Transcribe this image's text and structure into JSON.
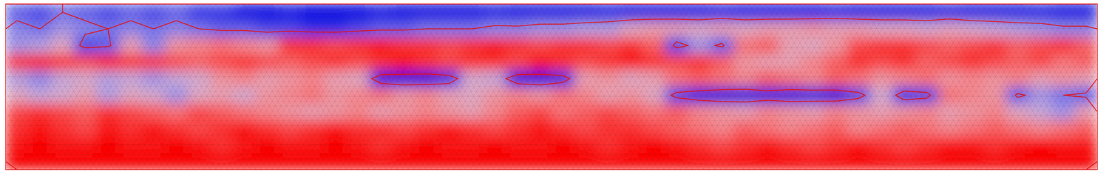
{
  "chart_data": {
    "type": "heatmap",
    "cells": [
      [
        -0.6,
        -0.7,
        -0.5,
        -0.6,
        -0.7,
        -0.6,
        -0.7,
        -0.6,
        -0.8,
        -0.8,
        -1,
        -1,
        -0.9,
        -1,
        -1,
        -1,
        -0.9,
        -1,
        -1,
        -1,
        -1,
        -0.9,
        -1,
        -1,
        -1,
        -1,
        -0.9,
        -1,
        -1,
        -1,
        -1,
        -0.9,
        -1,
        -1,
        -1,
        -1,
        -0.9,
        -1,
        -1,
        -1,
        -1,
        -0.9,
        -1,
        -1,
        -1,
        -0.9,
        -1,
        -1
      ],
      [
        -0.4,
        -0.5,
        -0.3,
        -0.4,
        -0.5,
        -0.4,
        -0.5,
        -0.4,
        -0.5,
        -0.6,
        -0.6,
        -0.7,
        -0.7,
        -0.8,
        -0.8,
        -0.7,
        -0.6,
        -0.6,
        -0.5,
        -0.5,
        -0.5,
        -0.4,
        -0.4,
        -0.3,
        -0.3,
        -0.2,
        -0.2,
        0.1,
        0.2,
        0.2,
        0.1,
        0.2,
        0.1,
        0.2,
        0.2,
        0.3,
        0.2,
        0.2,
        0.1,
        0.1,
        0.0,
        0.1,
        0.0,
        -0.1,
        -0.2,
        -0.3,
        -0.4,
        -0.4
      ],
      [
        -0.3,
        -0.2,
        0.1,
        -0.7,
        -0.6,
        0.2,
        -0.4,
        0.3,
        0.4,
        0.5,
        0.4,
        0.3,
        0.8,
        0.8,
        0.7,
        0.8,
        0.9,
        0.8,
        0.8,
        0.7,
        0.8,
        0.9,
        0.8,
        0.7,
        0.8,
        0.8,
        0.7,
        0.8,
        0.6,
        -0.7,
        -0.3,
        -0.6,
        0.5,
        0.6,
        0.2,
        0.1,
        0.3,
        0.7,
        0.8,
        0.8,
        0.7,
        0.6,
        0.7,
        0.8,
        0.6,
        0.7,
        0.8,
        0.6
      ],
      [
        0.8,
        0.9,
        0.8,
        0.7,
        0.9,
        0.8,
        0.8,
        0.7,
        0.6,
        0.7,
        0.8,
        0.7,
        0.6,
        0.7,
        0.8,
        0.7,
        0.8,
        0.9,
        0.8,
        0.7,
        0.8,
        0.8,
        0.7,
        0.9,
        0.8,
        0.7,
        0.8,
        0.9,
        0.8,
        0.7,
        0.8,
        0.6,
        0.3,
        0.2,
        0.2,
        0.4,
        0.6,
        0.8,
        0.7,
        0.8,
        0.6,
        0.7,
        0.8,
        0.7,
        0.6,
        0.7,
        0.5,
        0.6
      ],
      [
        -0.2,
        -0.4,
        -0.1,
        0.0,
        -0.2,
        -0.1,
        -0.3,
        -0.1,
        0.0,
        0.3,
        0.4,
        0.2,
        0.3,
        0.4,
        0.2,
        0.1,
        -0.9,
        -1,
        -1,
        -0.8,
        0.0,
        -0.1,
        -0.9,
        -1,
        -0.8,
        0.2,
        0.3,
        0.1,
        0.2,
        0.5,
        0.6,
        0.5,
        0.4,
        0.6,
        0.5,
        0.4,
        0.6,
        0.5,
        0.3,
        0.4,
        0.5,
        0.3,
        0.4,
        0.3,
        0.4,
        0.2,
        0.3,
        0.2
      ],
      [
        0.1,
        -0.1,
        0.0,
        0.2,
        -0.2,
        0.1,
        0.0,
        -0.3,
        0.1,
        0.2,
        0.0,
        0.3,
        0.4,
        0.5,
        0.3,
        0.4,
        0.5,
        0.3,
        0.4,
        0.2,
        0.1,
        0.3,
        0.4,
        0.3,
        0.5,
        0.4,
        0.2,
        0.3,
        0.1,
        -0.7,
        -0.9,
        -1,
        -1,
        -0.9,
        -1,
        -0.9,
        -1,
        -0.7,
        0.0,
        -0.8,
        -0.7,
        0.5,
        0.4,
        0.3,
        -0.6,
        -0.3,
        -0.5,
        -0.6
      ],
      [
        0.7,
        0.8,
        0.7,
        0.6,
        0.8,
        0.7,
        0.6,
        0.5,
        0.7,
        0.6,
        0.5,
        0.4,
        0.3,
        0.2,
        0.3,
        0.4,
        0.2,
        0.3,
        0.4,
        0.3,
        0.2,
        0.4,
        0.6,
        0.7,
        0.5,
        0.6,
        0.7,
        0.6,
        0.5,
        0.6,
        0.4,
        0.3,
        0.2,
        0.4,
        0.3,
        0.2,
        0.4,
        0.3,
        0.2,
        0.3,
        0.4,
        0.2,
        0.3,
        0.4,
        0.1,
        -0.1,
        -0.3,
        0.2
      ],
      [
        0.8,
        0.9,
        0.8,
        0.7,
        0.9,
        0.8,
        0.9,
        0.8,
        0.7,
        0.8,
        0.9,
        0.8,
        0.7,
        0.8,
        0.9,
        0.8,
        0.8,
        0.7,
        0.8,
        0.9,
        0.8,
        0.7,
        0.8,
        0.9,
        0.8,
        0.7,
        0.8,
        0.8,
        0.7,
        0.6,
        0.5,
        0.4,
        0.6,
        0.5,
        0.4,
        0.5,
        0.6,
        0.4,
        0.5,
        0.6,
        0.5,
        0.4,
        0.5,
        0.6,
        0.5,
        0.4,
        0.5,
        0.6
      ],
      [
        0.9,
        1,
        0.9,
        0.9,
        1,
        0.9,
        0.9,
        1,
        0.9,
        0.8,
        0.9,
        1,
        0.9,
        0.9,
        1,
        0.9,
        0.8,
        0.9,
        1,
        0.9,
        0.9,
        1,
        0.9,
        0.9,
        1,
        0.9,
        0.8,
        0.9,
        1,
        0.9,
        0.8,
        0.7,
        0.8,
        0.9,
        0.8,
        0.7,
        0.8,
        0.9,
        0.8,
        0.7,
        0.8,
        0.9,
        0.9,
        0.8,
        0.9,
        1,
        0.9,
        0.9
      ],
      [
        1,
        1,
        1,
        1,
        1,
        1,
        1,
        1,
        1,
        1,
        1,
        1,
        1,
        1,
        1,
        1,
        1,
        1,
        1,
        1,
        1,
        1,
        1,
        1,
        1,
        1,
        1,
        1,
        1,
        1,
        1,
        1,
        1,
        1,
        1,
        1,
        1,
        1,
        1,
        1,
        1,
        1,
        1,
        1,
        1,
        1,
        1,
        1
      ]
    ],
    "zlim": [
      -1,
      1
    ],
    "contour_levels": [
      -0.5
    ],
    "tick_labels": false
  }
}
